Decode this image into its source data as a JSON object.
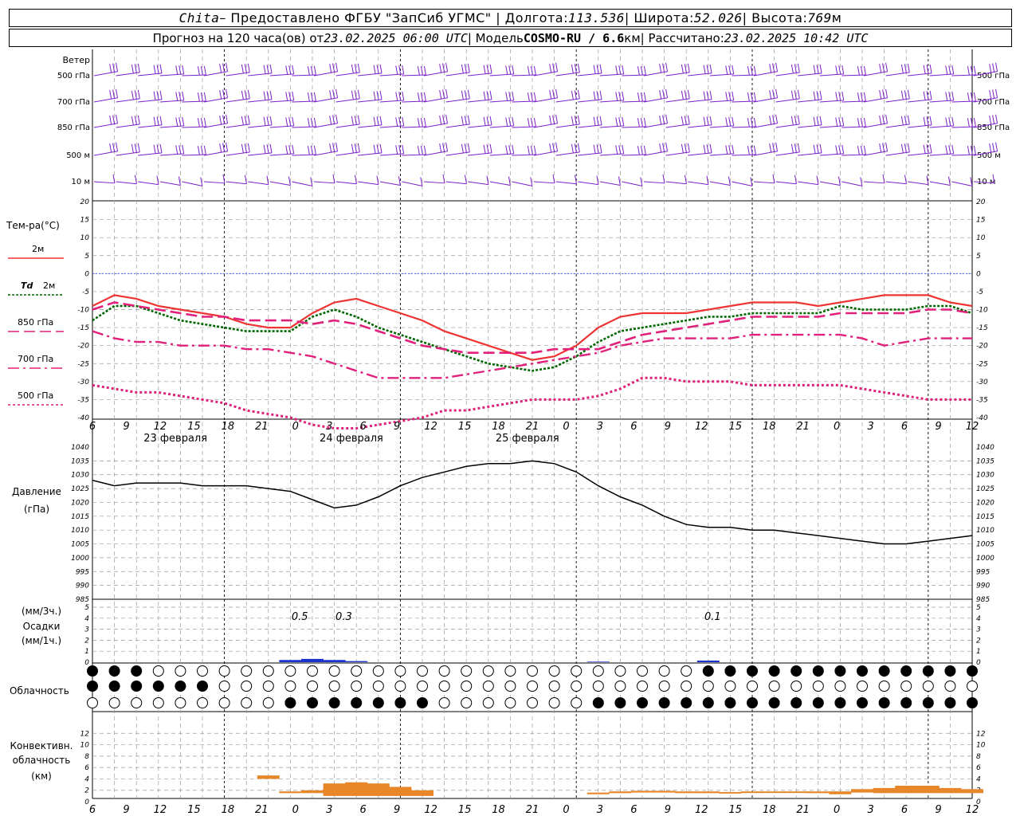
{
  "header": {
    "station": "Chita",
    "dash": " – Предоставлено ФГБУ \"ЗапСиб УГМС\" | Долгота: ",
    "lon": "113.536",
    "lat_label": " | Широта: ",
    "lat": "52.026",
    "alt_label": " | Высота: ",
    "alt": "769",
    "alt_unit": "м",
    "forecast_label": "Прогноз на 120 часа(ов) от ",
    "forecast_time": "23.02.2025 06:00 UTC",
    "model_label": " | Модель ",
    "model": "COSMO-RU / 6.6",
    "model_unit": "км",
    "calc_label": " | Рассчитано: ",
    "calc_time": "23.02.2025 10:42 UTC"
  },
  "colors": {
    "t2m": "#ee3333",
    "td2m": "#006600",
    "t850": "#e0207a",
    "t700": "#e0207a",
    "t500": "#e0207a",
    "pressure": "#000000",
    "precip": "#1a33cc",
    "conv": "#e8862a",
    "wind": "#7a20c8",
    "zero": "#3355ff"
  },
  "x_hours": [
    "6",
    "9",
    "12",
    "15",
    "18",
    "21",
    "0",
    "3",
    "6",
    "9",
    "12",
    "15",
    "18",
    "21",
    "0",
    "3",
    "6",
    "9",
    "12",
    "15",
    "18",
    "21",
    "0",
    "3",
    "6",
    "9",
    "12"
  ],
  "day_labels": [
    "23 февраля",
    "24 февраля",
    "25 февраля"
  ],
  "panels": {
    "wind": {
      "title": "Ветер",
      "levels": [
        "500 гПа",
        "700 гПа",
        "850 гПа",
        "500 м",
        "10 м"
      ]
    },
    "temp": {
      "title": "Тем-ра(°C)",
      "legend": [
        {
          "label": "2м",
          "style": "solid"
        },
        {
          "label_a": "Td",
          "label_b": "2м",
          "style": "dot"
        },
        {
          "label": "850 гПа",
          "style": "dash"
        },
        {
          "label": "700 гПа",
          "style": "dashdot"
        },
        {
          "label": "500 гПа",
          "style": "dense"
        }
      ]
    },
    "pressure": {
      "title1": "Давление",
      "title2": "(гПа)"
    },
    "precip": {
      "title1": "(мм/3ч.)",
      "title2": "Осадки",
      "title3": "(мм/1ч.)",
      "labels": [
        "0.5",
        "0.3",
        "0.1"
      ]
    },
    "cloud": {
      "title": "Облачность"
    },
    "conv": {
      "title1": "Конвективн.",
      "title2": "облачность",
      "title3": "(км)"
    }
  },
  "chart_data": [
    {
      "type": "line",
      "title": "Тем-ра(°C)",
      "ylim": [
        -40,
        20
      ],
      "yticks": [
        "20",
        "15",
        "10",
        "5",
        "0",
        "-5",
        "-10",
        "-15",
        "-20",
        "-25",
        "-30",
        "-35",
        "-40"
      ],
      "x": [
        0,
        1,
        2,
        3,
        4,
        5,
        6,
        7,
        8,
        9,
        10,
        11,
        12,
        13,
        14,
        15,
        16,
        17,
        18,
        19,
        20,
        21,
        22,
        23,
        24,
        25,
        26,
        27,
        28,
        29,
        30,
        31,
        32,
        33,
        34,
        35,
        36,
        37,
        38,
        39,
        40
      ],
      "series": [
        {
          "name": "2м",
          "values": [
            -9,
            -6,
            -7,
            -9,
            -10,
            -11,
            -12,
            -14,
            -15,
            -15,
            -11,
            -8,
            -7,
            -9,
            -11,
            -13,
            -16,
            -18,
            -20,
            -22,
            -24,
            -23,
            -20,
            -15,
            -12,
            -11,
            -11,
            -11,
            -10,
            -9,
            -8,
            -8,
            -8,
            -9,
            -8,
            -7,
            -6,
            -6,
            -6,
            -8,
            -9
          ]
        },
        {
          "name": "Td 2м",
          "values": [
            -13,
            -9,
            -9,
            -11,
            -13,
            -14,
            -15,
            -16,
            -16,
            -16,
            -12,
            -10,
            -12,
            -15,
            -17,
            -19,
            -21,
            -23,
            -25,
            -26,
            -27,
            -26,
            -23,
            -19,
            -16,
            -15,
            -14,
            -13,
            -12,
            -12,
            -11,
            -11,
            -11,
            -11,
            -9,
            -10,
            -10,
            -10,
            -9,
            -9,
            -11
          ]
        },
        {
          "name": "850 гПа",
          "values": [
            -10,
            -8,
            -9,
            -10,
            -11,
            -12,
            -12,
            -13,
            -13,
            -13,
            -14,
            -13,
            -14,
            -16,
            -18,
            -20,
            -21,
            -22,
            -22,
            -22,
            -22,
            -21,
            -21,
            -21,
            -19,
            -17,
            -16,
            -15,
            -14,
            -13,
            -12,
            -12,
            -12,
            -12,
            -11,
            -11,
            -11,
            -11,
            -10,
            -10,
            -11
          ]
        },
        {
          "name": "700 гПа",
          "values": [
            -16,
            -18,
            -19,
            -19,
            -20,
            -20,
            -20,
            -21,
            -21,
            -22,
            -23,
            -25,
            -27,
            -29,
            -29,
            -29,
            -29,
            -28,
            -27,
            -26,
            -25,
            -24,
            -23,
            -22,
            -20,
            -19,
            -18,
            -18,
            -18,
            -18,
            -17,
            -17,
            -17,
            -17,
            -17,
            -18,
            -20,
            -19,
            -18,
            -18,
            -18
          ]
        },
        {
          "name": "500 гПа",
          "values": [
            -31,
            -32,
            -33,
            -33,
            -34,
            -35,
            -36,
            -38,
            -39,
            -40,
            -42,
            -43,
            -43,
            -42,
            -41,
            -40,
            -38,
            -38,
            -37,
            -36,
            -35,
            -35,
            -35,
            -34,
            -32,
            -29,
            -29,
            -30,
            -30,
            -30,
            -31,
            -31,
            -31,
            -31,
            -31,
            -32,
            -33,
            -34,
            -35,
            -35,
            -35
          ]
        }
      ]
    },
    {
      "type": "line",
      "title": "Давление",
      "ylabel": "(гПа)",
      "ylim": [
        985,
        1040
      ],
      "yticks": [
        "1040",
        "1035",
        "1030",
        "1025",
        "1020",
        "1015",
        "1010",
        "1005",
        "1000",
        "995",
        "990",
        "985"
      ],
      "x": [
        0,
        1,
        2,
        3,
        4,
        5,
        6,
        7,
        8,
        9,
        10,
        11,
        12,
        13,
        14,
        15,
        16,
        17,
        18,
        19,
        20,
        21,
        22,
        23,
        24,
        25,
        26,
        27,
        28,
        29,
        30,
        31,
        32,
        33,
        34,
        35,
        36,
        37,
        38,
        39,
        40
      ],
      "series": [
        {
          "name": "Давление",
          "values": [
            1028,
            1026,
            1027,
            1027,
            1027,
            1026,
            1026,
            1026,
            1025,
            1024,
            1021,
            1018,
            1019,
            1022,
            1026,
            1029,
            1031,
            1033,
            1034,
            1034,
            1035,
            1034,
            1031,
            1026,
            1022,
            1019,
            1015,
            1012,
            1011,
            1011,
            1010,
            1010,
            1009,
            1008,
            1007,
            1006,
            1005,
            1005,
            1006,
            1007,
            1008
          ]
        }
      ]
    },
    {
      "type": "bar",
      "title": "Осадки",
      "ylim": [
        0,
        5
      ],
      "yticks": [
        "5",
        "4",
        "3",
        "2",
        "1",
        "0"
      ],
      "x": [
        9,
        10,
        11,
        12,
        23,
        28
      ],
      "series": [
        {
          "name": "Осадки",
          "values": [
            0.2,
            0.3,
            0.2,
            0.1,
            0.05,
            0.15
          ]
        }
      ]
    },
    {
      "type": "bar",
      "title": "Конвективн. облачность",
      "ylabel": "(км)",
      "ylim": [
        0,
        14
      ],
      "yticks": [
        "12",
        "10",
        "8",
        "6",
        "4",
        "2",
        "0"
      ],
      "x": [
        8,
        9,
        10,
        11,
        12,
        13,
        14,
        15,
        23,
        24,
        25,
        26,
        27,
        28,
        29,
        30,
        31,
        32,
        33,
        34,
        35,
        36,
        37,
        38,
        39,
        40
      ],
      "series": [
        {
          "name": "base",
          "values": [
            4,
            1.5,
            1.5,
            1,
            1,
            1,
            1,
            1,
            1.3,
            1.5,
            1.6,
            1.6,
            1.5,
            1.5,
            1.5,
            1.6,
            1.6,
            1.6,
            1.5,
            1.3,
            1.6,
            1.5,
            1.5,
            1.5,
            1.5,
            1.5
          ]
        },
        {
          "name": "top",
          "values": [
            4.6,
            1.8,
            2,
            3.2,
            3.4,
            3.2,
            2.6,
            2,
            1.6,
            1.8,
            1.9,
            1.9,
            1.8,
            1.8,
            1.7,
            1.8,
            1.8,
            1.8,
            1.8,
            1.8,
            2.2,
            2.4,
            2.8,
            2.8,
            2.4,
            2.2
          ]
        }
      ]
    }
  ]
}
